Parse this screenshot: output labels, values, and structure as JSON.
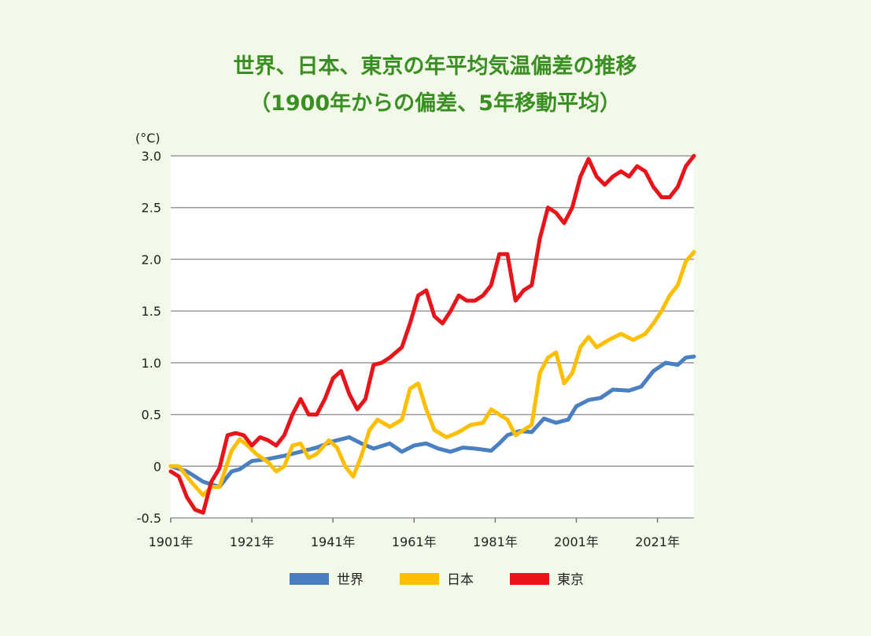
{
  "chart_data": {
    "type": "line",
    "title": "世界、日本、東京の年平均気温偏差の推移",
    "subtitle": "（1900年からの偏差、5年移動平均）",
    "unit_label": "(°C)",
    "xlabel": "",
    "ylabel": "",
    "x_range": [
      1901,
      2030
    ],
    "ylim": [
      -0.5,
      3.0
    ],
    "y_ticks": [
      {
        "value": 3.0,
        "label": "3.0"
      },
      {
        "value": 2.5,
        "label": "2.5"
      },
      {
        "value": 2.0,
        "label": "2.0"
      },
      {
        "value": 1.5,
        "label": "1.5"
      },
      {
        "value": 1.0,
        "label": "1.0"
      },
      {
        "value": 0.5,
        "label": "0.5"
      },
      {
        "value": 0,
        "label": "0"
      },
      {
        "value": -0.5,
        "label": "-0.5"
      }
    ],
    "x_ticks": [
      {
        "value": 1901,
        "label": "1901年"
      },
      {
        "value": 1921,
        "label": "1921年"
      },
      {
        "value": 1941,
        "label": "1941年"
      },
      {
        "value": 1961,
        "label": "1961年"
      },
      {
        "value": 1981,
        "label": "1981年"
      },
      {
        "value": 2001,
        "label": "2001年"
      },
      {
        "value": 2021,
        "label": "2021年"
      }
    ],
    "grid": true,
    "legend_position": "bottom",
    "series": [
      {
        "name": "世界",
        "color": "#4a7fc1",
        "points": [
          [
            1901,
            0.0
          ],
          [
            1905,
            -0.05
          ],
          [
            1909,
            -0.15
          ],
          [
            1913,
            -0.2
          ],
          [
            1916,
            -0.05
          ],
          [
            1918,
            -0.03
          ],
          [
            1921,
            0.05
          ],
          [
            1925,
            0.07
          ],
          [
            1929,
            0.1
          ],
          [
            1933,
            0.14
          ],
          [
            1937,
            0.18
          ],
          [
            1941,
            0.24
          ],
          [
            1945,
            0.28
          ],
          [
            1948,
            0.22
          ],
          [
            1951,
            0.17
          ],
          [
            1955,
            0.22
          ],
          [
            1958,
            0.14
          ],
          [
            1961,
            0.2
          ],
          [
            1964,
            0.22
          ],
          [
            1967,
            0.17
          ],
          [
            1970,
            0.14
          ],
          [
            1973,
            0.18
          ],
          [
            1976,
            0.17
          ],
          [
            1980,
            0.15
          ],
          [
            1982,
            0.22
          ],
          [
            1984,
            0.3
          ],
          [
            1987,
            0.34
          ],
          [
            1990,
            0.33
          ],
          [
            1993,
            0.46
          ],
          [
            1996,
            0.42
          ],
          [
            1999,
            0.45
          ],
          [
            2001,
            0.58
          ],
          [
            2004,
            0.64
          ],
          [
            2007,
            0.66
          ],
          [
            2010,
            0.74
          ],
          [
            2014,
            0.73
          ],
          [
            2017,
            0.77
          ],
          [
            2020,
            0.92
          ],
          [
            2023,
            1.0
          ],
          [
            2026,
            0.98
          ],
          [
            2028,
            1.05
          ],
          [
            2030,
            1.06
          ]
        ]
      },
      {
        "name": "日本",
        "color": "#ffbf00",
        "points": [
          [
            1901,
            0.0
          ],
          [
            1903,
            0.0
          ],
          [
            1906,
            -0.15
          ],
          [
            1909,
            -0.28
          ],
          [
            1911,
            -0.2
          ],
          [
            1913,
            -0.2
          ],
          [
            1916,
            0.15
          ],
          [
            1918,
            0.26
          ],
          [
            1920,
            0.2
          ],
          [
            1922,
            0.12
          ],
          [
            1925,
            0.04
          ],
          [
            1927,
            -0.05
          ],
          [
            1929,
            0.0
          ],
          [
            1931,
            0.2
          ],
          [
            1933,
            0.22
          ],
          [
            1935,
            0.08
          ],
          [
            1937,
            0.12
          ],
          [
            1940,
            0.25
          ],
          [
            1942,
            0.18
          ],
          [
            1944,
            0.0
          ],
          [
            1946,
            -0.1
          ],
          [
            1948,
            0.1
          ],
          [
            1950,
            0.35
          ],
          [
            1952,
            0.45
          ],
          [
            1955,
            0.38
          ],
          [
            1958,
            0.45
          ],
          [
            1960,
            0.75
          ],
          [
            1962,
            0.8
          ],
          [
            1964,
            0.55
          ],
          [
            1966,
            0.35
          ],
          [
            1969,
            0.28
          ],
          [
            1972,
            0.33
          ],
          [
            1975,
            0.4
          ],
          [
            1978,
            0.42
          ],
          [
            1980,
            0.55
          ],
          [
            1982,
            0.5
          ],
          [
            1984,
            0.45
          ],
          [
            1986,
            0.3
          ],
          [
            1988,
            0.35
          ],
          [
            1990,
            0.4
          ],
          [
            1992,
            0.9
          ],
          [
            1994,
            1.05
          ],
          [
            1996,
            1.1
          ],
          [
            1998,
            0.8
          ],
          [
            2000,
            0.9
          ],
          [
            2002,
            1.15
          ],
          [
            2004,
            1.25
          ],
          [
            2006,
            1.15
          ],
          [
            2009,
            1.22
          ],
          [
            2012,
            1.28
          ],
          [
            2015,
            1.22
          ],
          [
            2018,
            1.28
          ],
          [
            2020,
            1.38
          ],
          [
            2022,
            1.5
          ],
          [
            2024,
            1.65
          ],
          [
            2026,
            1.75
          ],
          [
            2028,
            1.98
          ],
          [
            2030,
            2.07
          ]
        ]
      },
      {
        "name": "東京",
        "color": "#e8141a",
        "points": [
          [
            1901,
            -0.05
          ],
          [
            1903,
            -0.1
          ],
          [
            1905,
            -0.3
          ],
          [
            1907,
            -0.42
          ],
          [
            1909,
            -0.45
          ],
          [
            1911,
            -0.15
          ],
          [
            1913,
            -0.02
          ],
          [
            1915,
            0.3
          ],
          [
            1917,
            0.32
          ],
          [
            1919,
            0.3
          ],
          [
            1921,
            0.2
          ],
          [
            1923,
            0.28
          ],
          [
            1925,
            0.25
          ],
          [
            1927,
            0.2
          ],
          [
            1929,
            0.3
          ],
          [
            1931,
            0.5
          ],
          [
            1933,
            0.65
          ],
          [
            1935,
            0.5
          ],
          [
            1937,
            0.5
          ],
          [
            1939,
            0.65
          ],
          [
            1941,
            0.85
          ],
          [
            1943,
            0.92
          ],
          [
            1945,
            0.7
          ],
          [
            1947,
            0.55
          ],
          [
            1949,
            0.65
          ],
          [
            1951,
            0.98
          ],
          [
            1953,
            1.0
          ],
          [
            1955,
            1.05
          ],
          [
            1958,
            1.15
          ],
          [
            1960,
            1.38
          ],
          [
            1962,
            1.65
          ],
          [
            1964,
            1.7
          ],
          [
            1966,
            1.45
          ],
          [
            1968,
            1.38
          ],
          [
            1970,
            1.5
          ],
          [
            1972,
            1.65
          ],
          [
            1974,
            1.6
          ],
          [
            1976,
            1.6
          ],
          [
            1978,
            1.65
          ],
          [
            1980,
            1.75
          ],
          [
            1982,
            2.05
          ],
          [
            1984,
            2.05
          ],
          [
            1986,
            1.6
          ],
          [
            1988,
            1.7
          ],
          [
            1990,
            1.75
          ],
          [
            1992,
            2.2
          ],
          [
            1994,
            2.5
          ],
          [
            1996,
            2.45
          ],
          [
            1998,
            2.35
          ],
          [
            2000,
            2.5
          ],
          [
            2002,
            2.8
          ],
          [
            2004,
            2.97
          ],
          [
            2006,
            2.8
          ],
          [
            2008,
            2.72
          ],
          [
            2010,
            2.8
          ],
          [
            2012,
            2.85
          ],
          [
            2014,
            2.8
          ],
          [
            2016,
            2.9
          ],
          [
            2018,
            2.85
          ],
          [
            2020,
            2.7
          ],
          [
            2022,
            2.6
          ],
          [
            2024,
            2.6
          ],
          [
            2026,
            2.7
          ],
          [
            2028,
            2.9
          ],
          [
            2030,
            3.0
          ]
        ]
      }
    ]
  }
}
